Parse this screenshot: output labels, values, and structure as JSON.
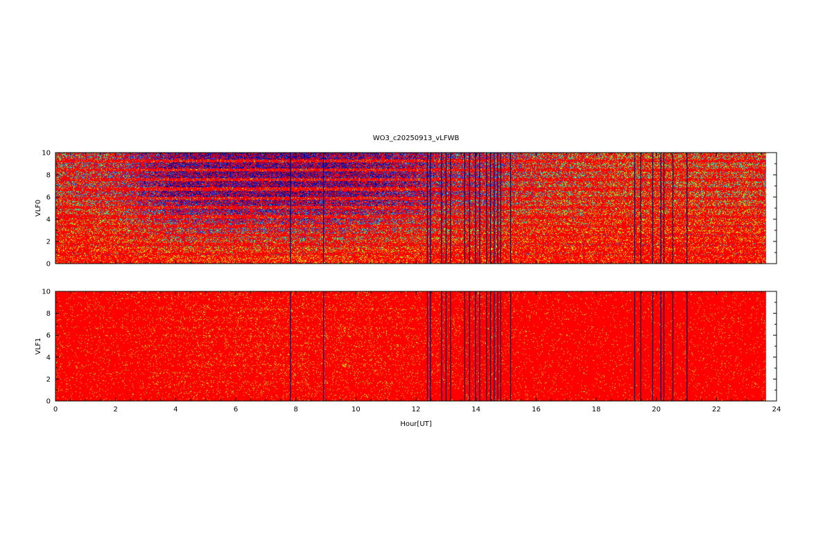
{
  "title": "WO3_c20250913_vLFWB",
  "colors": {
    "background": "#ff0000",
    "speckle_red": "#ff2000",
    "speckle_orange": "#ff8c00",
    "speckle_yellow": "#ffff00",
    "speckle_green": "#7fff30",
    "speckle_cyan": "#00d8d8",
    "speckle_blue": "#0040ff",
    "speckle_navy": "#000090",
    "gap_line": "#00006e",
    "axis": "#000000"
  },
  "chart_data": [
    {
      "type": "heatmap",
      "panel": "top",
      "ylabel": "VLF0",
      "xlim": [
        0,
        24
      ],
      "ylim": [
        0,
        10
      ],
      "xticks": [
        0,
        2,
        4,
        6,
        8,
        10,
        12,
        14,
        16,
        18,
        20,
        22,
        24
      ],
      "yticks": [
        0,
        2,
        4,
        6,
        8,
        10
      ],
      "data_end_hour": 23.65,
      "harmonic_bands_khz": [
        0.9,
        1.75,
        2.6,
        3.4,
        4.25,
        5.1,
        5.9,
        6.75,
        7.6,
        8.45,
        9.3
      ],
      "activity_profile": {
        "hours": [
          0,
          2,
          3,
          4,
          6,
          8,
          10,
          12,
          13,
          14,
          15,
          16,
          18,
          20,
          22,
          23.65
        ],
        "level": [
          0.35,
          0.45,
          0.7,
          0.95,
          1.0,
          1.0,
          0.95,
          0.75,
          0.6,
          0.55,
          0.45,
          0.35,
          0.3,
          0.25,
          0.3,
          0.3
        ]
      },
      "noise_level": 0.55
    },
    {
      "type": "heatmap",
      "panel": "bottom",
      "ylabel": "VLF1",
      "xlabel": "Hour[UT]",
      "xlim": [
        0,
        24
      ],
      "ylim": [
        0,
        10
      ],
      "xticks": [
        0,
        2,
        4,
        6,
        8,
        10,
        12,
        14,
        16,
        18,
        20,
        22,
        24
      ],
      "yticks": [
        0,
        2,
        4,
        6,
        8,
        10
      ],
      "data_end_hour": 23.65,
      "harmonic_bands_khz": [
        1.7,
        2.55,
        3.35,
        4.2,
        5.05,
        5.9,
        6.7,
        7.55,
        8.4
      ],
      "activity_profile": {
        "hours": [
          0,
          2,
          3,
          4,
          6,
          8,
          10,
          12,
          13,
          14,
          15,
          16,
          18,
          20,
          22,
          23.65
        ],
        "level": [
          0.35,
          0.45,
          0.7,
          0.95,
          1.0,
          1.0,
          0.95,
          0.75,
          0.6,
          0.55,
          0.45,
          0.35,
          0.3,
          0.25,
          0.3,
          0.3
        ]
      },
      "noise_level": 0.06
    }
  ],
  "data_gap_hours": [
    7.82,
    8.92,
    12.38,
    12.48,
    12.85,
    13.0,
    13.15,
    13.62,
    13.78,
    13.98,
    14.12,
    14.35,
    14.48,
    14.6,
    14.72,
    14.82,
    15.15,
    19.28,
    19.48,
    19.88,
    20.15,
    20.25,
    20.55,
    21.02
  ]
}
